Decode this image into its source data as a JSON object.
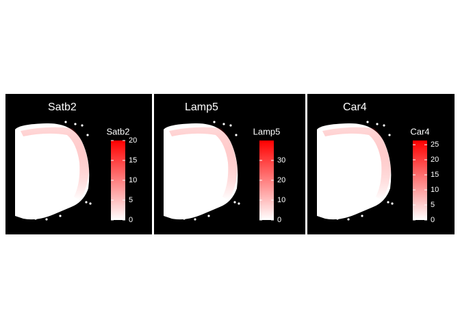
{
  "chart_data": [
    {
      "type": "spatial",
      "title": "Satb2",
      "legend_title": "Satb2",
      "low_color": "#ffffff",
      "high_color": "#ff0000",
      "ylim": [
        0,
        20
      ],
      "yticks": [
        0,
        5,
        10,
        15,
        20
      ]
    },
    {
      "type": "spatial",
      "title": "Lamp5",
      "legend_title": "Lamp5",
      "low_color": "#ffffff",
      "high_color": "#ff0000",
      "ylim": [
        0,
        40
      ],
      "yticks": [
        0,
        10,
        20,
        30
      ]
    },
    {
      "type": "spatial",
      "title": "Car4",
      "legend_title": "Car4",
      "low_color": "#ffffff",
      "high_color": "#ff0000",
      "ylim": [
        0,
        26.4
      ],
      "yticks": [
        0,
        5,
        10,
        15,
        20,
        25
      ]
    }
  ]
}
